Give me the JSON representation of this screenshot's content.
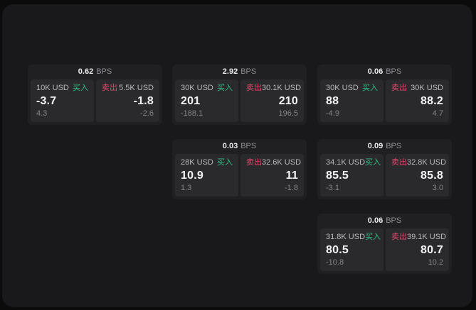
{
  "labels": {
    "bps_unit": "BPS",
    "buy": "买入",
    "sell": "卖出"
  },
  "colors": {
    "buy_green": "#2EBD85",
    "sell_red": "#E0486C",
    "page_background": "#0b0b0b",
    "panel_background": "#19191b",
    "card_background": "#202022",
    "subpanel_background": "#2a2a2c"
  },
  "cards": [
    {
      "bps": "0.62",
      "buy": {
        "amount": "10K USD",
        "price": "-3.7",
        "delta": "4.3"
      },
      "sell": {
        "amount": "5.5K USD",
        "price": "-1.8",
        "delta": "-2.6"
      }
    },
    {
      "bps": "2.92",
      "buy": {
        "amount": "30K USD",
        "price": "201",
        "delta": "-188.1"
      },
      "sell": {
        "amount": "30.1K USD",
        "price": "210",
        "delta": "196.5"
      }
    },
    {
      "bps": "0.06",
      "buy": {
        "amount": "30K USD",
        "price": "88",
        "delta": "-4.9"
      },
      "sell": {
        "amount": "30K USD",
        "price": "88.2",
        "delta": "4.7"
      }
    },
    {
      "bps": "0.03",
      "buy": {
        "amount": "28K USD",
        "price": "10.9",
        "delta": "1.3"
      },
      "sell": {
        "amount": "32.6K USD",
        "price": "11",
        "delta": "-1.8"
      }
    },
    {
      "bps": "0.09",
      "buy": {
        "amount": "34.1K USD",
        "price": "85.5",
        "delta": "-3.1"
      },
      "sell": {
        "amount": "32.8K USD",
        "price": "85.8",
        "delta": "3.0"
      }
    },
    {
      "bps": "0.06",
      "buy": {
        "amount": "31.8K USD",
        "price": "80.5",
        "delta": "-10.8"
      },
      "sell": {
        "amount": "39.1K USD",
        "price": "80.7",
        "delta": "10.2"
      }
    }
  ]
}
